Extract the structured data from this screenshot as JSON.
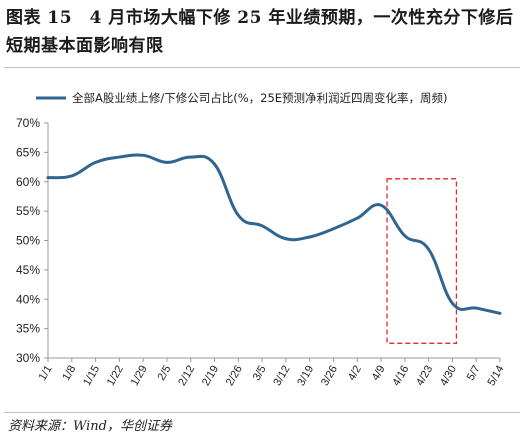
{
  "title": "图表 15　4 月市场大幅下修 25 年业绩预期，一次性充分下修后短期基本面影响有限",
  "source": "资料来源：Wind，华创证券",
  "colors": {
    "line": "#2e6591",
    "highlight": "#e8262b",
    "axis": "#9a9a9a"
  },
  "chart_data": {
    "type": "line",
    "title": "",
    "xlabel": "",
    "ylabel": "",
    "legend_position": "top",
    "grid": false,
    "ylim": [
      30,
      70
    ],
    "y_ticks": [
      "30%",
      "35%",
      "40%",
      "45%",
      "50%",
      "55%",
      "60%",
      "65%",
      "70%"
    ],
    "categories": [
      "1/1",
      "1/8",
      "1/15",
      "1/22",
      "1/29",
      "2/5",
      "2/12",
      "2/19",
      "2/26",
      "3/5",
      "3/12",
      "3/19",
      "3/26",
      "4/2",
      "4/9",
      "4/16",
      "4/23",
      "4/30",
      "5/7",
      "5/14"
    ],
    "series": [
      {
        "name": "全部A股业绩上修/下修公司占比(%，25E预测净利润近四周变化率，周频)",
        "values": [
          60.7,
          61.0,
          63.3,
          64.2,
          64.5,
          63.3,
          64.2,
          63.0,
          54.3,
          52.5,
          50.3,
          50.6,
          52.0,
          53.8,
          56.0,
          50.8,
          48.5,
          39.3,
          38.5,
          37.6
        ]
      }
    ],
    "annotations": [
      {
        "type": "dashed-box",
        "x_from": "4/9",
        "x_to": "4/30",
        "y_from": 32.5,
        "y_to": 60.5
      }
    ]
  }
}
